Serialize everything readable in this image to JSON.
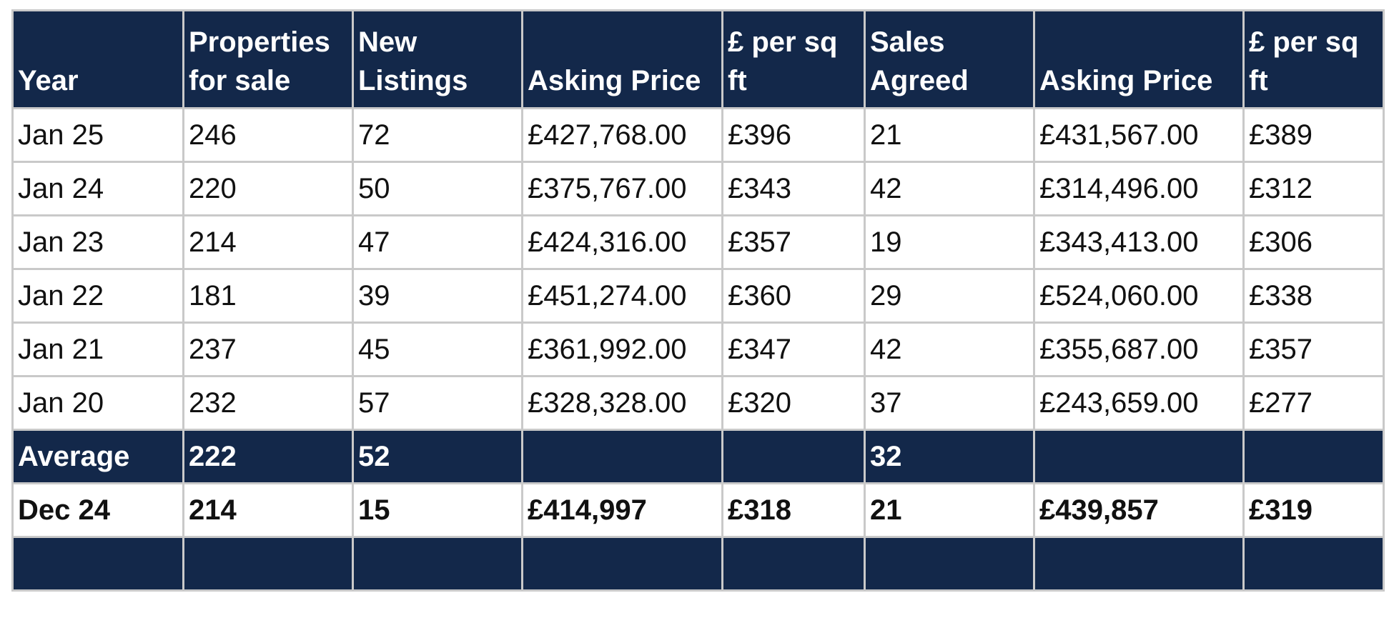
{
  "headers": [
    "Year",
    "Properties for sale",
    "New Listings",
    "Asking Price",
    "£ per sq ft",
    "Sales Agreed",
    "Asking Price",
    "£ per sq ft"
  ],
  "rows": [
    [
      "Jan 25",
      "246",
      "72",
      "£427,768.00",
      "£396",
      "21",
      "£431,567.00",
      "£389"
    ],
    [
      "Jan 24",
      "220",
      "50",
      "£375,767.00",
      "£343",
      "42",
      "£314,496.00",
      "£312"
    ],
    [
      "Jan 23",
      "214",
      "47",
      "£424,316.00",
      "£357",
      "19",
      "£343,413.00",
      "£306"
    ],
    [
      "Jan 22",
      "181",
      "39",
      "£451,274.00",
      "£360",
      "29",
      "£524,060.00",
      "£338"
    ],
    [
      "Jan 21",
      "237",
      "45",
      "£361,992.00",
      "£347",
      "42",
      "£355,687.00",
      "£357"
    ],
    [
      "Jan 20",
      "232",
      "57",
      "£328,328.00",
      "£320",
      "37",
      "£243,659.00",
      "£277"
    ]
  ],
  "average": [
    "Average",
    "222",
    "52",
    "",
    "",
    "32",
    "",
    ""
  ],
  "dec": [
    "Dec 24",
    "214",
    "15",
    "£414,997",
    "£318",
    "21",
    "£439,857",
    "£319"
  ]
}
